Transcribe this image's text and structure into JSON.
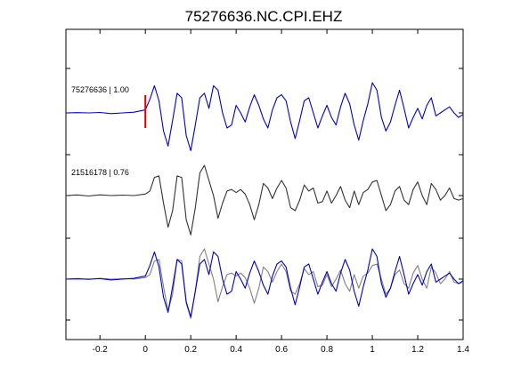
{
  "chart_data": {
    "type": "line",
    "title": "75276636.NC.CPI.EHZ",
    "xlabel": "",
    "ylabel": "",
    "xlim": [
      -0.35,
      1.4
    ],
    "x_ticks": [
      -0.2,
      0,
      0.2,
      0.4,
      0.6,
      0.8,
      1,
      1.2,
      1.4
    ],
    "x_tick_labels": [
      "-0.2",
      "0",
      "0.2",
      "0.4",
      "0.6",
      "0.8",
      "1",
      "1.2",
      "1.4"
    ],
    "grid": false,
    "pick_marker": {
      "x": 0,
      "color": "#e00000"
    },
    "series": [
      {
        "name": "75276636 | 1.00",
        "color": "#0000cc",
        "row": 1,
        "x": [
          -0.35,
          -0.3,
          -0.25,
          -0.2,
          -0.15,
          -0.1,
          -0.05,
          0.0,
          0.02,
          0.04,
          0.06,
          0.08,
          0.1,
          0.12,
          0.14,
          0.16,
          0.18,
          0.2,
          0.22,
          0.24,
          0.26,
          0.28,
          0.3,
          0.32,
          0.34,
          0.36,
          0.38,
          0.4,
          0.42,
          0.44,
          0.46,
          0.48,
          0.5,
          0.52,
          0.54,
          0.56,
          0.58,
          0.6,
          0.62,
          0.64,
          0.66,
          0.68,
          0.7,
          0.72,
          0.74,
          0.76,
          0.78,
          0.8,
          0.82,
          0.84,
          0.86,
          0.88,
          0.9,
          0.92,
          0.94,
          0.96,
          0.98,
          1.0,
          1.02,
          1.04,
          1.06,
          1.08,
          1.1,
          1.12,
          1.14,
          1.16,
          1.18,
          1.2,
          1.22,
          1.24,
          1.26,
          1.28,
          1.3,
          1.32,
          1.34,
          1.36,
          1.38,
          1.4
        ],
        "y": [
          0.0,
          0.02,
          0.0,
          0.03,
          -0.05,
          0.0,
          0.05,
          0.2,
          0.9,
          1.8,
          0.8,
          -1.2,
          -2.2,
          -0.5,
          1.3,
          1.0,
          -1.5,
          -2.5,
          -0.8,
          1.0,
          1.3,
          0.3,
          1.8,
          1.5,
          0.0,
          -1.0,
          -0.8,
          0.5,
          0.0,
          -0.6,
          0.4,
          1.2,
          0.5,
          -0.4,
          -1.0,
          0.2,
          1.0,
          1.2,
          0.8,
          -0.6,
          -1.7,
          -0.5,
          0.8,
          1.0,
          0.0,
          -1.0,
          -0.2,
          0.5,
          -0.3,
          -0.8,
          0.4,
          1.3,
          0.6,
          -0.8,
          -1.8,
          -0.5,
          0.6,
          2.0,
          1.5,
          -0.3,
          -1.2,
          -0.6,
          0.5,
          1.5,
          0.3,
          -1.0,
          -0.3,
          0.3,
          -0.4,
          0.5,
          1.0,
          -0.2,
          0.0,
          0.2,
          0.4,
          0.0,
          -0.3,
          -0.1
        ]
      },
      {
        "name": "21516178 | 0.76",
        "color": "#333333",
        "row": 2,
        "x": [
          -0.35,
          -0.3,
          -0.25,
          -0.2,
          -0.15,
          -0.1,
          -0.05,
          0.0,
          0.02,
          0.04,
          0.06,
          0.08,
          0.1,
          0.12,
          0.14,
          0.16,
          0.18,
          0.2,
          0.22,
          0.24,
          0.26,
          0.28,
          0.3,
          0.32,
          0.34,
          0.36,
          0.38,
          0.4,
          0.42,
          0.44,
          0.46,
          0.48,
          0.5,
          0.52,
          0.54,
          0.56,
          0.58,
          0.6,
          0.62,
          0.64,
          0.66,
          0.68,
          0.7,
          0.72,
          0.74,
          0.76,
          0.78,
          0.8,
          0.82,
          0.84,
          0.86,
          0.88,
          0.9,
          0.92,
          0.94,
          0.96,
          0.98,
          1.0,
          1.02,
          1.04,
          1.06,
          1.08,
          1.1,
          1.12,
          1.14,
          1.16,
          1.18,
          1.2,
          1.22,
          1.24,
          1.26,
          1.28,
          1.3,
          1.32,
          1.34,
          1.36,
          1.38,
          1.4
        ],
        "y": [
          0.0,
          0.04,
          -0.03,
          0.05,
          0.0,
          0.03,
          0.0,
          0.1,
          0.3,
          1.2,
          1.3,
          -0.5,
          -2.1,
          -1.0,
          1.3,
          1.2,
          -1.6,
          -2.6,
          -0.8,
          1.5,
          2.0,
          1.0,
          0.0,
          -1.5,
          -0.5,
          0.3,
          0.4,
          0.2,
          0.4,
          0.1,
          -0.6,
          -1.6,
          -0.6,
          0.8,
          0.5,
          -0.2,
          0.5,
          1.0,
          0.5,
          -0.8,
          -1.0,
          -0.3,
          0.7,
          0.3,
          0.5,
          -0.5,
          -0.4,
          0.3,
          -0.5,
          0.0,
          0.6,
          -0.3,
          -0.8,
          0.3,
          -0.6,
          0.2,
          0.4,
          0.9,
          1.0,
          0.0,
          -1.0,
          -0.6,
          0.3,
          0.6,
          -0.3,
          -0.6,
          0.4,
          0.9,
          0.0,
          -0.6,
          0.8,
          0.4,
          -0.3,
          0.0,
          0.5,
          -0.2,
          -0.3,
          -0.2
        ]
      }
    ],
    "overlay_row": 3
  }
}
